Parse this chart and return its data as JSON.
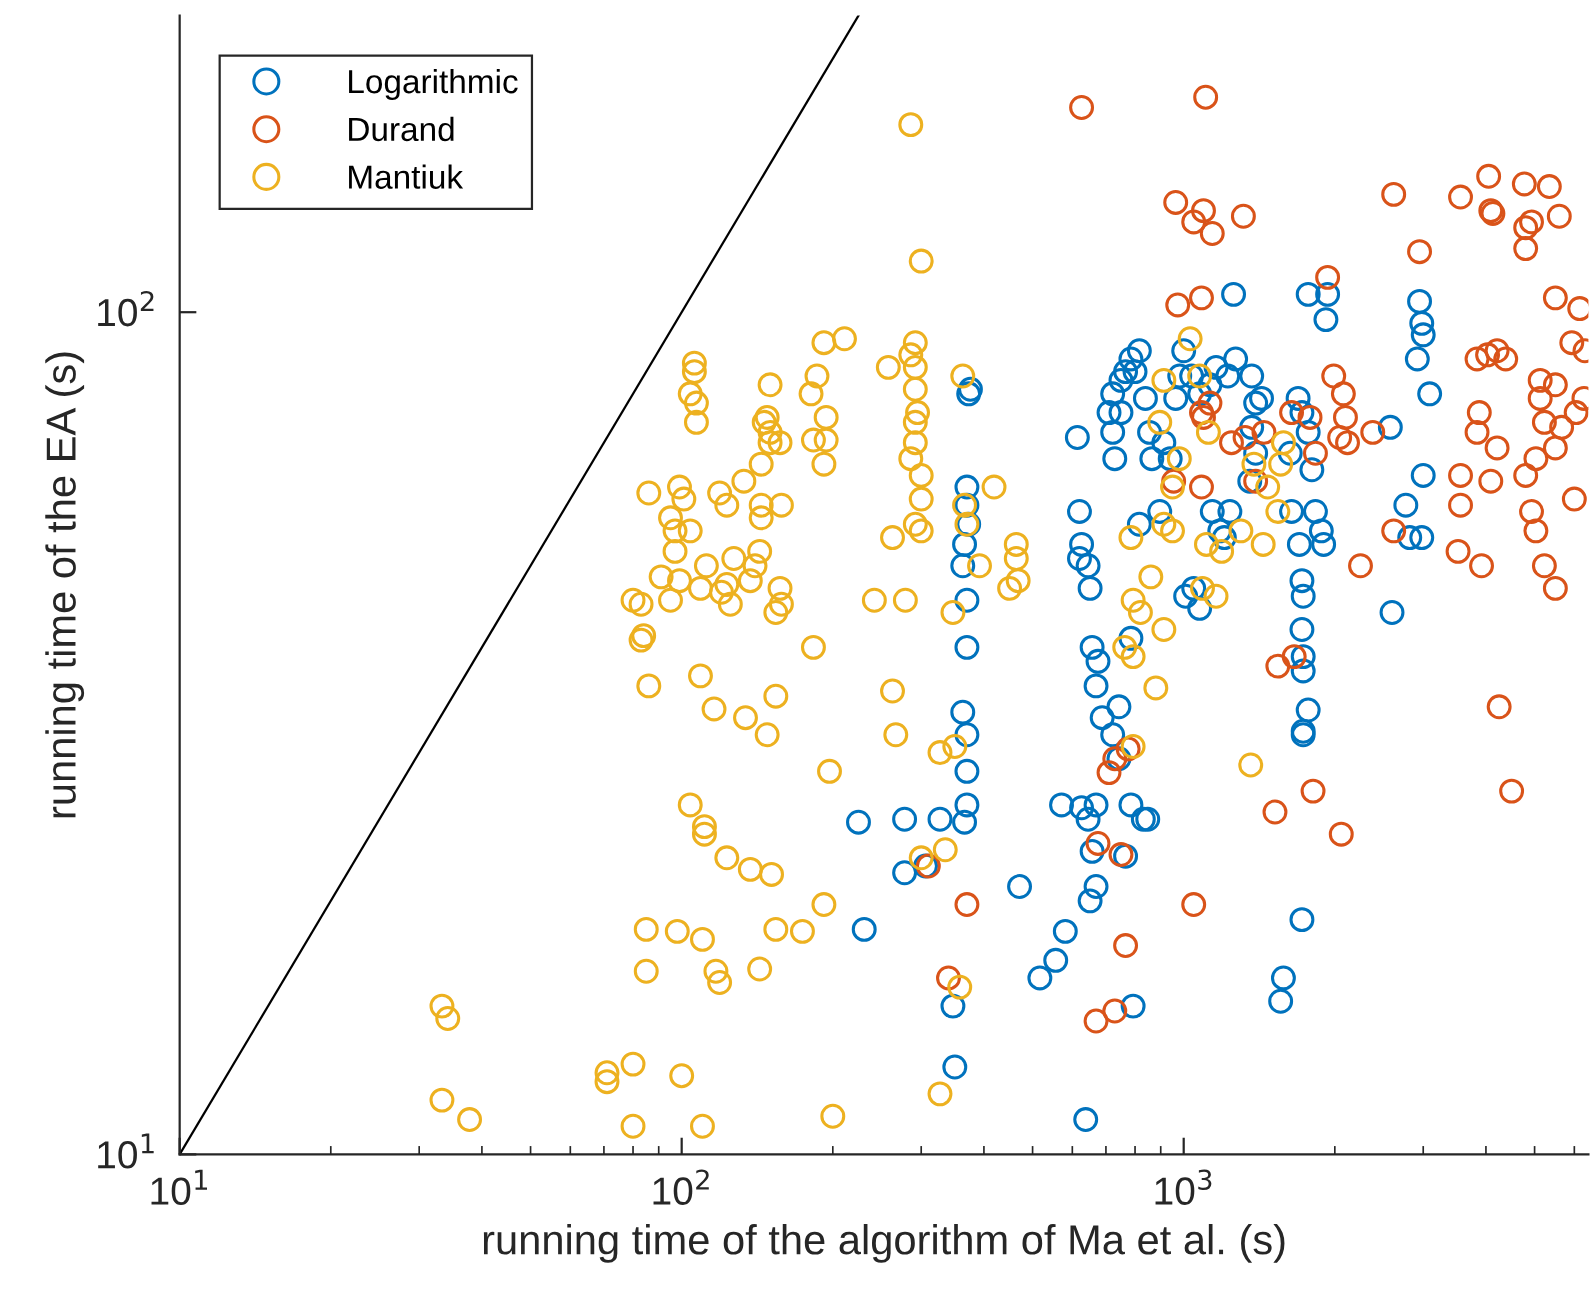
{
  "chart_data": {
    "type": "scatter",
    "xlabel": "running time of the algorithm of Ma et al. (s)",
    "ylabel": "running time of the EA (s)",
    "log": "xy",
    "xlim": [
      10,
      6400
    ],
    "ylim": [
      10,
      225
    ],
    "xticks": [
      {
        "value": 10,
        "label": "10$^{1}$"
      },
      {
        "value": 100,
        "label": "10$^{2}$"
      },
      {
        "value": 1000,
        "label": "10$^{3}$"
      }
    ],
    "yticks": [
      {
        "value": 10,
        "label": "10$^{1}$"
      },
      {
        "value": 100,
        "label": "10$^{2}$"
      }
    ],
    "grid": false,
    "legend": "top left",
    "marker": "circle",
    "series": [
      {
        "type": "line",
        "marker": "none",
        "color": "#000000",
        "x": [
          10,
          225
        ],
        "values": [
          10,
          225
        ]
      },
      {
        "name": "Logarithmic",
        "color": "#0072bd",
        "x": [
          225,
          231,
          278,
          278,
          327,
          306,
          347,
          350,
          366,
          370,
          370,
          370,
          363,
          370,
          370,
          363,
          366,
          373,
          370,
          370,
          373,
          376,
          471,
          517,
          556,
          581,
          669,
          669,
          651,
          645,
          657,
          626,
          766,
          785,
          848,
          831,
          793,
          638,
          571,
          614,
          620,
          620,
          626,
          645,
          651,
          657,
          669,
          675,
          688,
          722,
          743,
          743,
          729,
          722,
          750,
          710,
          722,
          750,
          766,
          785,
          800,
          816,
          839,
          855,
          864,
          896,
          913,
          940,
          964,
          982,
          1000,
          1037,
          1076,
          1128,
          1160,
          1224,
          1269,
          1366,
          1391,
          1366,
          1391,
          1429,
          1354,
          1236,
          1180,
          1205,
          1140,
          1076,
          1047,
          1009,
          785,
          816,
          1257,
          1920,
          1770,
          1935,
          1900,
          1880,
          1830,
          1800,
          1770,
          1720,
          1690,
          1640,
          1700,
          1720,
          1730,
          1720,
          1730,
          1730,
          1770,
          1730,
          1730,
          1720,
          1580,
          1560,
          1630,
          2580,
          2600,
          2820,
          2770,
          2980,
          3000,
          2920,
          2980,
          2950,
          3090,
          3000
        ],
        "values": [
          24.8,
          18.5,
          25,
          21.6,
          25,
          22,
          15,
          12.7,
          24.8,
          26,
          28.5,
          31.5,
          33.5,
          40,
          45.5,
          50,
          53,
          56,
          59,
          62,
          80,
          81,
          20.8,
          16.2,
          17,
          18.4,
          26,
          20.8,
          20,
          25,
          22.9,
          25.8,
          22.6,
          26,
          25,
          25,
          15,
          11,
          26,
          71,
          58,
          51,
          53,
          50,
          47,
          40,
          36,
          38.5,
          33,
          31.5,
          29.5,
          34,
          67,
          72,
          76,
          76,
          80,
          83,
          85,
          88,
          85,
          90,
          79,
          72,
          67,
          58,
          70,
          67,
          79,
          84,
          90,
          84,
          80,
          82,
          86,
          84,
          88,
          84,
          78,
          73,
          68,
          79,
          63,
          58,
          55,
          54,
          58,
          44.5,
          47,
          46,
          41,
          56,
          105,
          98,
          105,
          105,
          53,
          55,
          58,
          65,
          72,
          76,
          79,
          58,
          53,
          48,
          46,
          42,
          39,
          37.5,
          33.7,
          31.8,
          31.5,
          19,
          16.2,
          15.2,
          68,
          73,
          44,
          54,
          59,
          54,
          64,
          88,
          97,
          103,
          80,
          94
        ]
      },
      {
        "name": "Durand",
        "color": "#d95319",
        "x": [
          626,
          1106,
          964,
          1095,
          1047,
          1140,
          1315,
          973,
          1085,
          1935,
          955,
          1085,
          1095,
          1085,
          1128,
          1245,
          1325,
          1391,
          1445,
          1640,
          1785,
          1830,
          2045,
          2100,
          2080,
          1990,
          2120,
          2620,
          2950,
          3560,
          4090,
          4770,
          4930,
          4050,
          4130,
          4800,
          4800,
          5350,
          5600,
          5500,
          6150,
          4210,
          3840,
          4030,
          3880,
          4380,
          5130,
          5130,
          5230,
          5930,
          5500,
          5660,
          6050,
          6270,
          6300,
          4800,
          5030,
          5500,
          4930,
          5030,
          5230,
          5500,
          6000,
          4210,
          3840,
          4090,
          3560,
          3560,
          3920,
          3520,
          4250,
          4500,
          2620,
          2380,
          2250,
          1660,
          1540,
          1520,
          2060,
          1047,
          729,
          775,
          766,
          710,
          729,
          669,
          340,
          310,
          370,
          675,
          750,
          1810
        ],
        "values": [
          175,
          180,
          135,
          132,
          128,
          124,
          130,
          102,
          104,
          110,
          63,
          62,
          75,
          76,
          78,
          70,
          71,
          63,
          72,
          76,
          75,
          68,
          71,
          75,
          80,
          84,
          70,
          138,
          118,
          137,
          132,
          142,
          128,
          145,
          131,
          126,
          119,
          141,
          130,
          104,
          101,
          90,
          88,
          89,
          76,
          88,
          83,
          79,
          74,
          92,
          82,
          73,
          76,
          79,
          90,
          64,
          67,
          69,
          58,
          55,
          50,
          47,
          60,
          69,
          72,
          63,
          64,
          59,
          50,
          52,
          34,
          27,
          55,
          72,
          50,
          39,
          38,
          25.5,
          24,
          19.8,
          29.5,
          30.3,
          17.7,
          28.4,
          14.8,
          14.4,
          16.2,
          22,
          19.8,
          23.4,
          22.7,
          27
        ]
      },
      {
        "name": "Mantiuk",
        "color": "#edb120",
        "x": [
          33.3,
          34.2,
          33.3,
          37.8,
          71,
          71,
          80,
          80,
          100,
          110,
          200,
          85,
          98,
          85,
          110,
          117,
          119,
          143,
          154,
          174,
          192,
          151,
          123,
          137,
          111,
          104,
          111,
          197,
          148,
          134,
          116,
          86,
          154,
          183,
          109,
          83,
          84,
          83,
          80,
          95,
          109,
          99,
          112,
          140,
          157,
          154,
          158,
          120,
          127,
          143,
          123,
          125,
          137,
          91,
          97,
          104,
          101,
          99,
          119,
          123,
          144,
          144,
          133,
          158,
          144,
          157,
          150,
          192,
          194,
          194,
          183,
          181,
          186,
          192,
          104,
          106,
          106,
          107,
          107,
          150,
          148,
          150,
          146,
          86,
          95,
          97,
          211,
          258,
          292,
          292,
          292,
          292,
          292,
          286,
          300,
          292,
          300,
          300,
          263,
          242,
          279,
          286,
          300,
          286,
          295,
          363,
          419,
          366,
          370,
          392,
          464,
          468,
          450,
          464,
          347,
          263,
          267,
          327,
          350,
          300,
          335,
          358,
          327,
          860,
          793,
          1030,
          913,
          896,
          1076,
          1120,
          980,
          950,
          950,
          785,
          913,
          820,
          913,
          763,
          793,
          880,
          793,
          1090,
          1190,
          1110,
          1160,
          1300,
          1440,
          1540,
          1470,
          1560,
          1580,
          1380,
          1360
        ],
        "values": [
          15,
          14.5,
          11.6,
          11,
          12.5,
          12.2,
          12.8,
          10.8,
          12.4,
          10.8,
          11.1,
          18.5,
          18.4,
          16.5,
          18,
          16.5,
          16,
          16.6,
          18.5,
          18.4,
          19.8,
          21.5,
          22.5,
          21.8,
          24,
          26,
          24.5,
          28.5,
          31.5,
          33,
          33.8,
          36,
          35,
          40,
          37,
          40.8,
          41.3,
          45,
          45.5,
          45.5,
          47,
          48,
          50,
          50,
          47,
          44,
          45,
          46.5,
          51,
          52,
          47.5,
          45,
          48,
          48.5,
          52,
          55,
          60,
          62,
          61,
          59,
          57,
          59,
          63,
          59,
          66,
          70,
          72,
          66,
          70.5,
          75,
          70.5,
          80,
          84,
          92,
          80,
          87,
          85,
          78,
          74,
          82,
          75,
          70,
          74,
          61,
          57,
          55,
          93,
          86,
          86,
          92,
          81,
          74,
          70,
          67,
          64,
          56,
          55,
          60,
          54,
          45.5,
          45.5,
          167,
          115,
          89,
          76,
          84,
          62,
          59,
          56,
          50,
          53,
          48,
          47,
          51,
          44,
          35.5,
          31.5,
          30,
          30.5,
          22.5,
          23,
          15.8,
          11.8,
          48.5,
          45.5,
          93,
          83,
          74,
          84,
          72,
          67,
          62,
          55,
          54,
          56,
          44,
          42,
          40,
          39,
          35.8,
          30.5,
          47,
          52,
          53,
          46,
          55,
          53,
          58,
          62,
          66,
          70,
          66,
          29
        ]
      }
    ]
  }
}
